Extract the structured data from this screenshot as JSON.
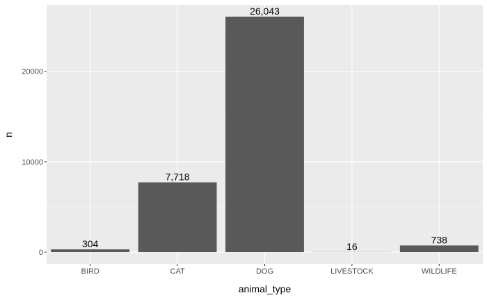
{
  "chart_data": {
    "type": "bar",
    "categories": [
      "BIRD",
      "CAT",
      "DOG",
      "LIVESTOCK",
      "WILDLIFE"
    ],
    "values": [
      304,
      7718,
      26043,
      16,
      738
    ],
    "value_labels": [
      "304",
      "7,718",
      "26,043",
      "16",
      "738"
    ],
    "title": "",
    "xlabel": "animal_type",
    "ylabel": "n",
    "ylim": [
      -1302,
      27345
    ],
    "yticks": [
      0,
      10000,
      20000
    ],
    "ytick_labels": [
      "0",
      "10000",
      "20000"
    ],
    "y_minor_ticks": [
      5000,
      15000,
      25000
    ],
    "grid": true,
    "legend": "none",
    "colors": {
      "bar": "#595959",
      "panel_background": "#ebebeb",
      "grid_major": "#ffffff",
      "grid_minor": "#f5f5f5"
    }
  }
}
